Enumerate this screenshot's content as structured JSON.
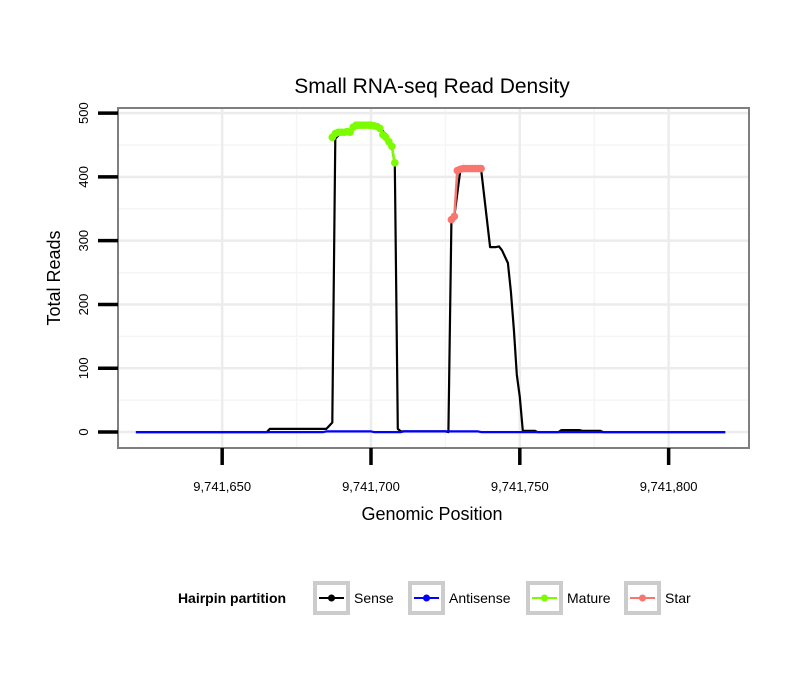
{
  "chart_data": {
    "type": "line",
    "title": "Small RNA-seq Read Density",
    "xlabel": "Genomic Position",
    "ylabel": "Total Reads",
    "xlim": [
      9741615,
      9741827
    ],
    "ylim": [
      -25,
      508
    ],
    "x_ticks": [
      9741650,
      9741700,
      9741750,
      9741800
    ],
    "x_tick_labels": [
      "9,741,650",
      "9,741,700",
      "9,741,750",
      "9,741,800"
    ],
    "y_ticks": [
      0,
      100,
      200,
      300,
      400,
      500
    ],
    "y_tick_labels": [
      "0",
      "100",
      "200",
      "300",
      "400",
      "500"
    ],
    "grid": true,
    "legend": {
      "title": "Hairpin partition",
      "position": "bottom",
      "entries": [
        "Sense",
        "Antisense",
        "Mature",
        "Star"
      ]
    },
    "series": [
      {
        "name": "Sense",
        "color": "#000000",
        "marker": "line",
        "x": [
          9741621,
          9741665,
          9741666,
          9741685,
          9741686,
          9741687,
          9741688,
          9741690,
          9741693,
          9741695,
          9741700,
          9741703,
          9741705,
          9741706,
          9741707,
          9741708,
          9741709,
          9741710,
          9741725,
          9741726,
          9741727,
          9741728,
          9741730,
          9741733,
          9741736,
          9741737,
          9741740,
          9741742,
          9741743,
          9741744,
          9741746,
          9741747,
          9741748,
          9741749,
          9741750,
          9741751,
          9741755,
          9741756,
          9741763,
          9741764,
          9741770,
          9741771,
          9741777,
          9741778,
          9741819
        ],
        "values": [
          0,
          0,
          5,
          5,
          10,
          15,
          460,
          470,
          472,
          477,
          481,
          476,
          467,
          458,
          448,
          420,
          5,
          1,
          1,
          0,
          330,
          338,
          410,
          413,
          413,
          412,
          290,
          290,
          291,
          285,
          265,
          220,
          160,
          90,
          55,
          2,
          2,
          0,
          0,
          3,
          3,
          2,
          2,
          0,
          0
        ]
      },
      {
        "name": "Antisense",
        "color": "#0000ff",
        "marker": "line",
        "x": [
          9741621,
          9741684,
          9741685,
          9741700,
          9741701,
          9741710,
          9741711,
          9741736,
          9741737,
          9741778,
          9741779,
          9741819
        ],
        "values": [
          0,
          0,
          1,
          1,
          0,
          0,
          1,
          1,
          0,
          0,
          0,
          0
        ]
      },
      {
        "name": "Mature",
        "color": "#7cfc00",
        "marker": "point",
        "x": [
          9741687,
          9741688,
          9741689,
          9741690,
          9741691,
          9741692,
          9741693,
          9741694,
          9741695,
          9741696,
          9741697,
          9741698,
          9741699,
          9741700,
          9741701,
          9741702,
          9741703,
          9741704,
          9741705,
          9741706,
          9741707,
          9741708
        ],
        "values": [
          462,
          468,
          470,
          470,
          470,
          471,
          470,
          478,
          481,
          481,
          481,
          481,
          481,
          481,
          480,
          479,
          476,
          466,
          462,
          455,
          448,
          422
        ]
      },
      {
        "name": "Star",
        "color": "#f8766d",
        "marker": "point",
        "x": [
          9741727,
          9741728,
          9741729,
          9741730,
          9741731,
          9741732,
          9741733,
          9741734,
          9741735,
          9741736,
          9741737
        ],
        "values": [
          333,
          338,
          410,
          412,
          413,
          413,
          413,
          413,
          413,
          413,
          413
        ]
      }
    ]
  }
}
